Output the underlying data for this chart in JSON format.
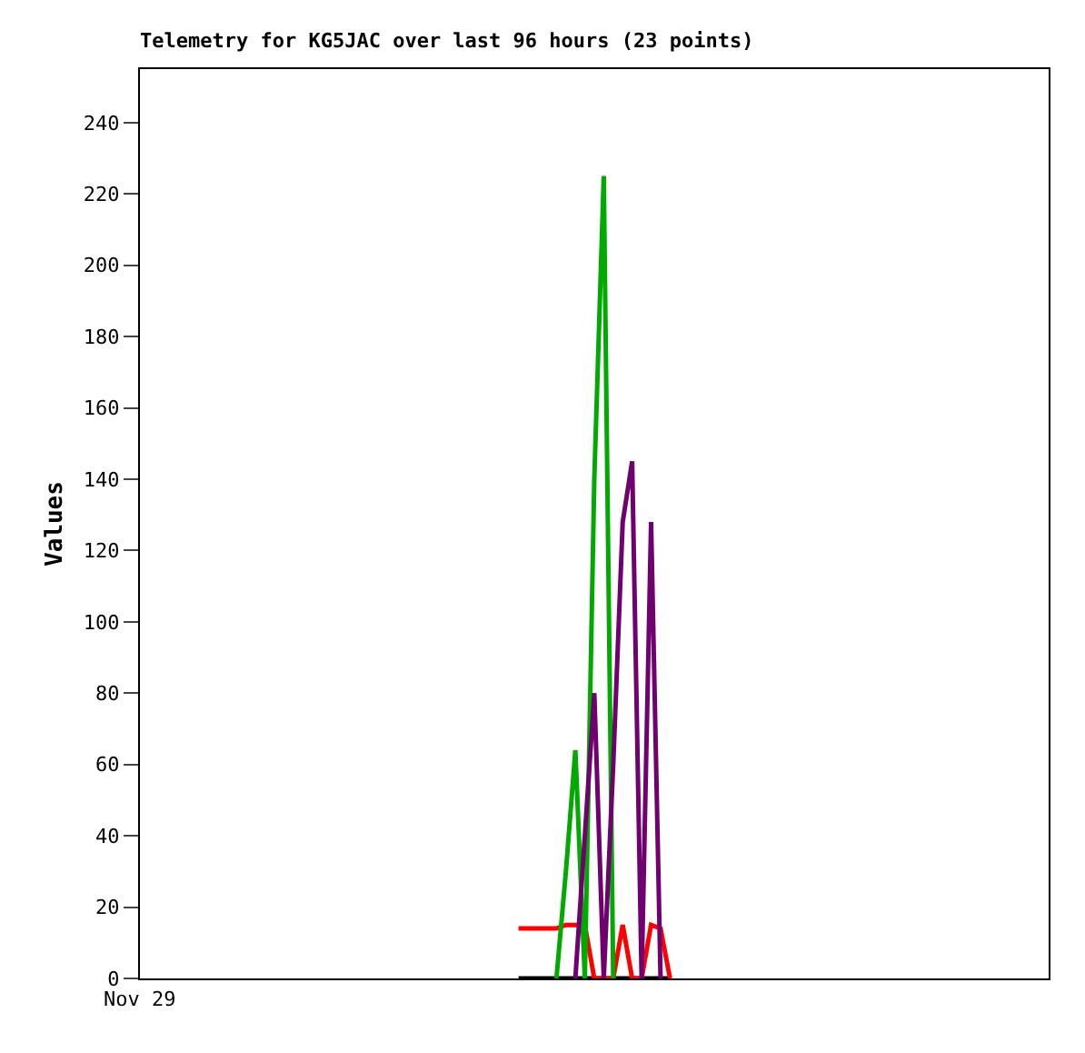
{
  "chart_data": {
    "type": "line",
    "title": "Telemetry for KG5JAC over last 96 hours (23 points)",
    "ylabel": "Values",
    "annotations": [
      "Nov 29"
    ],
    "categories": [
      null,
      null,
      null,
      null,
      null,
      null,
      null,
      null,
      null,
      null,
      null,
      null,
      null,
      null,
      null,
      null,
      null,
      null,
      null,
      null,
      null,
      null,
      null,
      null,
      null,
      null,
      null,
      null,
      null,
      null,
      null,
      null,
      null,
      null,
      null,
      null,
      null,
      null,
      null,
      null,
      null,
      null,
      null,
      null,
      null,
      null,
      null,
      null,
      null,
      null,
      null,
      null,
      null,
      null,
      null,
      null,
      null,
      null,
      null,
      null,
      null,
      null,
      null,
      null,
      null,
      null,
      null,
      null,
      null,
      null,
      null,
      null,
      null,
      null,
      null,
      null,
      null,
      null,
      null,
      null,
      null,
      null,
      null,
      null,
      null,
      null,
      null,
      null,
      null,
      null,
      null,
      null,
      null,
      null,
      null,
      null,
      null
    ],
    "ylim": [
      0,
      255
    ],
    "yticks": [
      0,
      20,
      40,
      60,
      80,
      100,
      120,
      140,
      160,
      180,
      200,
      220,
      240
    ],
    "marker": "none",
    "line_style": "solid",
    "tick_labels": "y",
    "series": [
      {
        "color": "#000000",
        "values": [
          null,
          null,
          null,
          null,
          null,
          null,
          null,
          null,
          null,
          null,
          null,
          null,
          null,
          null,
          null,
          null,
          null,
          null,
          null,
          null,
          null,
          null,
          null,
          null,
          null,
          null,
          null,
          null,
          null,
          null,
          null,
          null,
          null,
          null,
          null,
          null,
          null,
          null,
          null,
          null,
          0,
          0,
          0,
          0,
          0,
          0,
          0,
          0,
          0,
          0,
          0,
          0,
          0,
          0,
          0,
          0,
          0,
          null,
          null,
          null,
          null,
          null,
          null,
          null,
          null,
          null,
          null,
          null,
          null,
          null,
          null,
          null,
          null,
          null,
          null,
          null,
          null,
          null,
          null,
          null,
          null,
          null,
          null,
          null,
          null,
          null,
          null,
          null,
          null,
          null,
          null,
          null,
          null,
          null,
          null,
          null,
          null
        ]
      },
      {
        "color": "#ff0000",
        "values": [
          null,
          null,
          null,
          null,
          null,
          null,
          null,
          null,
          null,
          null,
          null,
          null,
          null,
          null,
          null,
          null,
          null,
          null,
          null,
          null,
          null,
          null,
          null,
          null,
          null,
          null,
          null,
          null,
          null,
          null,
          null,
          null,
          null,
          null,
          null,
          null,
          null,
          null,
          null,
          null,
          14,
          14,
          14,
          14,
          14,
          15,
          15,
          15,
          0,
          0,
          0,
          15,
          0,
          0,
          15,
          14,
          0,
          null,
          null,
          null,
          null,
          null,
          null,
          null,
          null,
          null,
          null,
          null,
          null,
          null,
          null,
          null,
          null,
          null,
          null,
          null,
          null,
          null,
          null,
          null,
          null,
          null,
          null,
          null,
          null,
          null,
          null,
          null,
          null,
          null,
          null,
          null,
          null,
          null,
          null,
          null,
          null
        ]
      },
      {
        "color": "#00aa00",
        "values": [
          null,
          null,
          null,
          null,
          null,
          null,
          null,
          null,
          null,
          null,
          null,
          null,
          null,
          null,
          null,
          null,
          null,
          null,
          null,
          null,
          null,
          null,
          null,
          null,
          null,
          null,
          null,
          null,
          null,
          null,
          null,
          null,
          null,
          null,
          null,
          null,
          null,
          null,
          null,
          null,
          null,
          null,
          null,
          null,
          0,
          30,
          64,
          0,
          140,
          225,
          0,
          null,
          null,
          null,
          null,
          null,
          null,
          null,
          null,
          null,
          null,
          null,
          null,
          null,
          null,
          null,
          null,
          null,
          null,
          null,
          null,
          null,
          null,
          null,
          null,
          null,
          null,
          null,
          null,
          null,
          null,
          null,
          null,
          null,
          null,
          null,
          null,
          null,
          null,
          null,
          null,
          null,
          null,
          null,
          null,
          null,
          null
        ]
      },
      {
        "color": "#700070",
        "values": [
          null,
          null,
          null,
          null,
          null,
          null,
          null,
          null,
          null,
          null,
          null,
          null,
          null,
          null,
          null,
          null,
          null,
          null,
          null,
          null,
          null,
          null,
          null,
          null,
          null,
          null,
          null,
          null,
          null,
          null,
          null,
          null,
          null,
          null,
          null,
          null,
          null,
          null,
          null,
          null,
          null,
          null,
          null,
          null,
          null,
          null,
          0,
          40,
          80,
          0,
          60,
          128,
          145,
          0,
          128,
          0,
          null,
          null,
          null,
          null,
          null,
          null,
          null,
          null,
          null,
          null,
          null,
          null,
          null,
          null,
          null,
          null,
          null,
          null,
          null,
          null,
          null,
          null,
          null,
          null,
          null,
          null,
          null,
          null,
          null,
          null,
          null,
          null,
          null,
          null,
          null,
          null,
          null,
          null,
          null,
          null,
          null
        ]
      }
    ]
  }
}
